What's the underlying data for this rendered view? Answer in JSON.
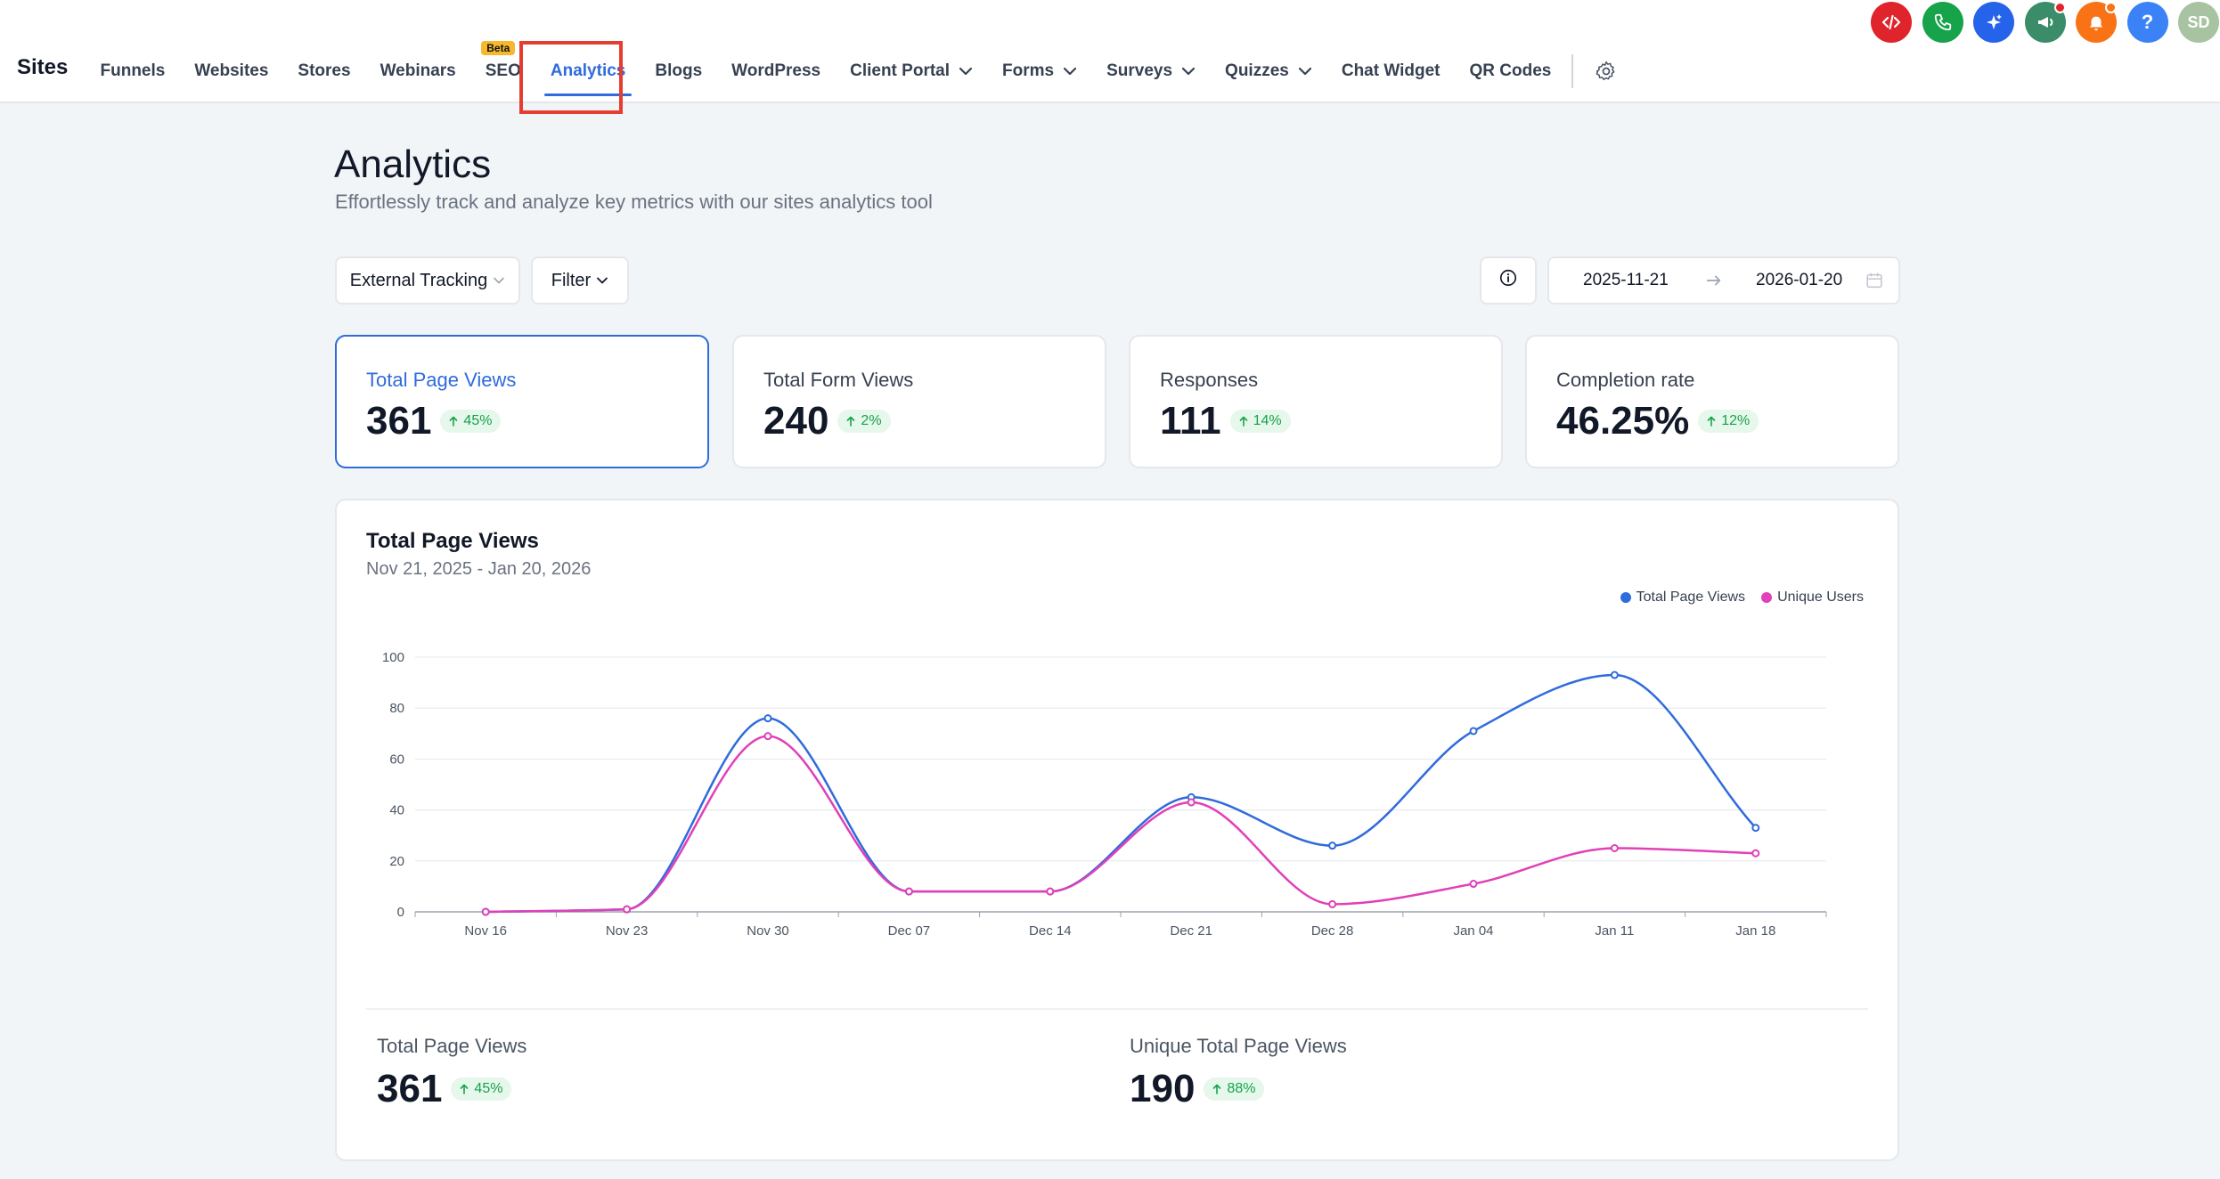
{
  "app": {
    "title": "Sites"
  },
  "nav": {
    "items": [
      {
        "label": "Funnels"
      },
      {
        "label": "Websites"
      },
      {
        "label": "Stores"
      },
      {
        "label": "Webinars"
      },
      {
        "label": "SEO",
        "badge": "Beta"
      },
      {
        "label": "Analytics",
        "active": true
      },
      {
        "label": "Blogs"
      },
      {
        "label": "WordPress"
      },
      {
        "label": "Client Portal",
        "dropdown": true
      },
      {
        "label": "Forms",
        "dropdown": true
      },
      {
        "label": "Surveys",
        "dropdown": true
      },
      {
        "label": "Quizzes",
        "dropdown": true
      },
      {
        "label": "Chat Widget"
      },
      {
        "label": "QR Codes"
      }
    ]
  },
  "top_icons": [
    {
      "icon": "code-icon",
      "color": "#e0242b"
    },
    {
      "icon": "phone-icon",
      "color": "#16a34a"
    },
    {
      "icon": "sparkle-icon",
      "color": "#2563eb"
    },
    {
      "icon": "megaphone-icon",
      "color": "#3b8d6a",
      "dot": "#e0242b"
    },
    {
      "icon": "bell-icon",
      "color": "#f97316",
      "dot": "#f97316"
    },
    {
      "icon": "help-icon",
      "color": "#3b82f6",
      "text": "?"
    }
  ],
  "avatar": {
    "initials": "SD"
  },
  "page": {
    "title": "Analytics",
    "subtitle": "Effortlessly track and analyze key metrics with our sites analytics tool"
  },
  "controls": {
    "tracking_select": "External Tracking",
    "filter_label": "Filter",
    "date_start": "2025-11-21",
    "date_end": "2026-01-20"
  },
  "cards": [
    {
      "label": "Total Page Views",
      "value": "361",
      "change": "45%"
    },
    {
      "label": "Total Form Views",
      "value": "240",
      "change": "2%"
    },
    {
      "label": "Responses",
      "value": "111",
      "change": "14%"
    },
    {
      "label": "Completion rate",
      "value": "46.25%",
      "change": "12%"
    }
  ],
  "chart_panel": {
    "title": "Total Page Views",
    "subtitle": "Nov 21, 2025 - Jan 20, 2026"
  },
  "chart_data": {
    "type": "line",
    "categories": [
      "Nov 16",
      "Nov 23",
      "Nov 30",
      "Dec 07",
      "Dec 14",
      "Dec 21",
      "Dec 28",
      "Jan 04",
      "Jan 11",
      "Jan 18"
    ],
    "series": [
      {
        "name": "Total Page Views",
        "color": "#2f6bdc",
        "values": [
          0,
          1,
          76,
          8,
          8,
          45,
          26,
          71,
          93,
          33
        ]
      },
      {
        "name": "Unique Users",
        "color": "#e040b8",
        "values": [
          0,
          1,
          69,
          8,
          8,
          43,
          3,
          11,
          25,
          23
        ]
      }
    ],
    "ylim": [
      0,
      100
    ],
    "yticks": [
      0,
      20,
      40,
      60,
      80,
      100
    ],
    "grid": true,
    "legend": "top-right"
  },
  "stats": [
    {
      "label": "Total Page Views",
      "value": "361",
      "change": "45%"
    },
    {
      "label": "Unique Total Page Views",
      "value": "190",
      "change": "88%"
    }
  ]
}
